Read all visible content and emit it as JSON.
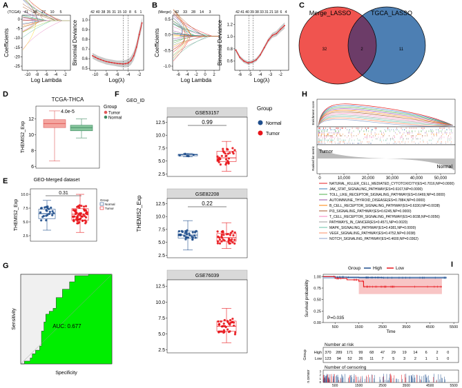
{
  "panel_labels": {
    "a": "A",
    "b": "B",
    "c": "C",
    "d": "D",
    "e": "E",
    "f": "F",
    "g": "G",
    "h": "H",
    "i": "I"
  },
  "chart_data": [
    {
      "id": "A-coef",
      "type": "line",
      "top_prefix": "(TCGA)",
      "top_ticks": [
        "41",
        "38",
        "27",
        "10",
        "5"
      ],
      "x_ticks": [
        "-10",
        "-8",
        "-6",
        "-4",
        "-2"
      ],
      "y_ticks": [
        "0",
        "-5",
        "-10",
        "-15",
        "-20",
        "-25"
      ],
      "xlabel": "Log Lambda",
      "ylabel": "Coefficients",
      "xlim": [
        -10.5,
        -1.5
      ],
      "ylim": [
        -27,
        3
      ]
    },
    {
      "id": "A-deviance",
      "type": "line",
      "top_ticks": [
        "42",
        "40",
        "38",
        "35",
        "31",
        "15",
        "10",
        "8",
        "6",
        "1"
      ],
      "x_ticks": [
        "-10",
        "-8",
        "-6",
        "-4",
        "-2"
      ],
      "y_ticks": [
        "1.0",
        "0.9",
        "0.8",
        "0.7",
        "0.6",
        "0.5"
      ],
      "xlabel": "Log(λ)",
      "ylabel": "Binomial Deviance",
      "xlim": [
        -11,
        -1.2
      ],
      "ylim": [
        0.48,
        1.05
      ],
      "vlines": [
        -4.9,
        -4.0
      ],
      "x": [
        -10.5,
        -10,
        -9.5,
        -9,
        -8.5,
        -8,
        -7.5,
        -7,
        -6.5,
        -6,
        -5.5,
        -5,
        -4.5,
        -4,
        -3.5,
        -3,
        -2.5,
        -2,
        -1.5
      ],
      "y": [
        0.63,
        0.615,
        0.6,
        0.59,
        0.58,
        0.57,
        0.565,
        0.56,
        0.555,
        0.55,
        0.548,
        0.546,
        0.548,
        0.556,
        0.58,
        0.63,
        0.72,
        0.85,
        0.97
      ]
    },
    {
      "id": "B-coef",
      "type": "line",
      "top_prefix": "(Merge)",
      "top_ticks": [
        "42",
        "33",
        "28",
        "14",
        "3"
      ],
      "x_ticks": [
        "-6",
        "-4",
        "-2",
        "0",
        "2"
      ],
      "y_ticks": [
        "0.5",
        "0.0",
        "-0.5",
        "-1.0"
      ],
      "xlabel": "Log Lambda",
      "ylabel": "Coefficients",
      "xlim": [
        -7,
        2.5
      ],
      "ylim": [
        -1.3,
        0.8
      ]
    },
    {
      "id": "B-deviance",
      "type": "line",
      "top_ticks": [
        "42",
        "41",
        "40",
        "39",
        "38",
        "33",
        "31",
        "21",
        "18",
        "6",
        "4"
      ],
      "x_ticks": [
        "-6",
        "-5",
        "-4",
        "-3",
        "-2"
      ],
      "y_ticks": [
        "1.2",
        "1.0",
        "0.8",
        "0.6"
      ],
      "xlabel": "Log(λ)",
      "ylabel": "Binomial Deviance",
      "xlim": [
        -6.5,
        -1.2
      ],
      "ylim": [
        0.45,
        1.35
      ],
      "vlines": [
        -5.1,
        -4.7
      ],
      "x": [
        -6.4,
        -6,
        -5.6,
        -5.2,
        -4.8,
        -4.4,
        -4,
        -3.6,
        -3.2,
        -2.8,
        -2.4,
        -2,
        -1.6
      ],
      "y": [
        0.78,
        0.66,
        0.6,
        0.57,
        0.585,
        0.62,
        0.7,
        0.82,
        0.94,
        1.02,
        1.05,
        1.12,
        1.18
      ]
    },
    {
      "id": "C-venn",
      "type": "venn",
      "sets": [
        "Merge_LASSO",
        "TGCA_LASSO"
      ],
      "values": {
        "only_left": "32",
        "both": "2",
        "only_right": "11"
      }
    },
    {
      "id": "D-box",
      "type": "box",
      "title": "TCGA-THCA",
      "pvalue": "4.0e-5",
      "ylabel": "THEMIS2_Exp",
      "y_ticks": [
        "12",
        "10",
        "8",
        "6"
      ],
      "ylim": [
        5.8,
        13.6
      ],
      "legend_title": "Group",
      "groups": [
        "Tumor",
        "Normal"
      ],
      "series": [
        {
          "name": "Tumor",
          "min": 6.7,
          "q1": 10.9,
          "median": 11.4,
          "q3": 11.9,
          "max": 13.0
        },
        {
          "name": "Normal",
          "min": 9.6,
          "q1": 10.5,
          "median": 10.9,
          "q3": 11.2,
          "max": 12.0
        }
      ]
    },
    {
      "id": "E-box",
      "type": "box",
      "title": "GEO-Merged dataset",
      "pvalue": "0.31",
      "ylabel": "THEMIS2_Exp",
      "y_ticks": [
        "10.0",
        "7.5",
        "5.0",
        "2.5"
      ],
      "ylim": [
        1.5,
        11.0
      ],
      "legend_title": "Group",
      "groups": [
        "Normal",
        "Tumor"
      ],
      "series": [
        {
          "name": "Normal",
          "min": 3.5,
          "q1": 5.6,
          "median": 6.5,
          "q3": 7.3,
          "max": 8.9
        },
        {
          "name": "Tumor",
          "min": 3.1,
          "q1": 5.3,
          "median": 6.4,
          "q3": 7.4,
          "max": 10.0
        }
      ]
    },
    {
      "id": "F-box",
      "type": "box",
      "title": "GEO_ID",
      "ylabel": "THEMIS2_Exp",
      "y_ticks": [
        "12.5",
        "10.0",
        "7.5",
        "5.0",
        "2.5"
      ],
      "ylim": [
        2.0,
        13.5
      ],
      "legend_title": "Group",
      "groups": [
        "Normal",
        "Tumor"
      ],
      "facets": [
        {
          "name": "GSE53157",
          "pvalue": "0.99",
          "series": [
            {
              "name": "Normal",
              "min": 5.8,
              "q1": 6.0,
              "median": 6.2,
              "q3": 6.3,
              "max": 6.5
            },
            {
              "name": "Tumor",
              "min": 3.0,
              "q1": 4.9,
              "median": 5.6,
              "q3": 6.9,
              "max": 8.8
            }
          ]
        },
        {
          "name": "GSE82208",
          "pvalue": "0.22",
          "series": [
            {
              "name": "Normal",
              "min": 3.5,
              "q1": 5.8,
              "median": 6.4,
              "q3": 7.2,
              "max": 9.2
            },
            {
              "name": "Tumor",
              "min": 3.8,
              "q1": 5.2,
              "median": 5.9,
              "q3": 6.7,
              "max": 8.8
            }
          ]
        },
        {
          "name": "GSE76039",
          "series": [
            {
              "name": "Tumor",
              "min": 3.6,
              "q1": 5.4,
              "median": 6.2,
              "q3": 7.0,
              "max": 9.0
            }
          ]
        }
      ]
    },
    {
      "id": "G-roc",
      "type": "area",
      "annotation": "AUC: 0.677",
      "xlabel": "Specificity",
      "ylabel": "Sensitivity",
      "fill": "#00ee00"
    },
    {
      "id": "H-gsea",
      "type": "line",
      "ylabel_top": "Enrichment score",
      "ylabel_bottom": "Ranked list metric",
      "x_ticks": [
        "0",
        "10,000",
        "20,000",
        "30,000",
        "40,000",
        "50,000"
      ],
      "xlim": [
        0,
        57000
      ],
      "tumor_label": "Tumor",
      "normal_label": "Normal",
      "series": [
        {
          "name": "NATURAL_KILLER_CELL_MEDIATED_CYTOTOXICITY(ES=0.7016,NP=0.0000)",
          "color": "#e41a1c"
        },
        {
          "name": "JAK_STAT_SIGNALING_PATHWAY(ES=0.6167,NP=0.0000)",
          "color": "#377eb8"
        },
        {
          "name": "TOLL_LIKE_RECEPTOR_SIGNALING_PATHWAY(ES=0.6469,NP=0.0000)",
          "color": "#4daf4a"
        },
        {
          "name": "AUTOIMMUNE_THYROID_DISEASE(ES=0.7884,NP=0.0000)",
          "color": "#984ea3"
        },
        {
          "name": "B_CELL_RECEPTOR_SIGNALING_PATHWAY(ES=0.6330,NP=0.0038)",
          "color": "#ff7f00"
        },
        {
          "name": "PI3_SIGNALING_PATHWAY(ES=0.6245,NP=0.0000)",
          "color": "#a65628"
        },
        {
          "name": "T_CELL_RECEPTOR_SIGNALING_PATHWAY(ES=0.6038,NP=0.0056)",
          "color": "#f781bf"
        },
        {
          "name": "PATHWAYS_IN_CANCER(ES=0.4571,NP=0.0020)",
          "color": "#999999"
        },
        {
          "name": "MAPK_SIGNALING_PATHWAY(ES=0.4381,NP=0.0000)",
          "color": "#66c2a5"
        },
        {
          "name": "VEGF_SIGNALING_PATHWAY(ES=0.4752,NP=0.0038)",
          "color": "#fc8d62"
        },
        {
          "name": "NOTCH_SIGNALING_PATHWAY(ES=0.4600,NP=0.0362)",
          "color": "#8da0cb"
        }
      ]
    },
    {
      "id": "I-km",
      "type": "line",
      "legend_title": "Group",
      "groups": [
        "High",
        "Low"
      ],
      "ylabel": "Survival probability",
      "xlabel": "Time",
      "pvalue": "P=0.035",
      "y_ticks": [
        "1.00",
        "0.75",
        "0.50",
        "0.25",
        "0.00"
      ],
      "x_ticks": [
        "500",
        "1500",
        "2500",
        "3500",
        "4500",
        "5500"
      ],
      "xlim": [
        0,
        5700
      ],
      "ylim": [
        0,
        1.05
      ],
      "series": [
        {
          "name": "High",
          "x": [
            0,
            500,
            1000,
            1500,
            2500,
            3500,
            4500,
            5200
          ],
          "y": [
            1.0,
            0.99,
            0.985,
            0.98,
            0.975,
            0.975,
            0.975,
            0.975
          ]
        },
        {
          "name": "Low",
          "x": [
            0,
            500,
            1000,
            1500,
            1700,
            2500,
            3500,
            4500,
            5000
          ],
          "y": [
            1.0,
            0.96,
            0.93,
            0.9,
            0.78,
            0.78,
            0.78,
            0.78,
            0.78
          ]
        }
      ],
      "risk_title": "Number at risk",
      "risk_ylabel": "Group",
      "risk_rows": [
        {
          "label": "High",
          "values": [
            "370",
            "289",
            "171",
            "99",
            "68",
            "47",
            "29",
            "19",
            "14",
            "6",
            "2",
            "0"
          ]
        },
        {
          "label": "Low",
          "values": [
            "123",
            "94",
            "52",
            "26",
            "11",
            "7",
            "5",
            "3",
            "2",
            "1",
            "1",
            "0"
          ]
        }
      ],
      "censor_title": "Number of censoring",
      "censor_ylabel": "n.censor",
      "censor_y_ticks": [
        "3",
        "2",
        "1",
        "0"
      ],
      "censor_x_ticks": [
        "500",
        "1500",
        "2500",
        "3500",
        "4500",
        "5500"
      ],
      "censor_xlabel": "Time"
    }
  ],
  "colors": {
    "tumor": "#e8141a",
    "normal": "#1f4e8c",
    "venn_left": "#f0544f",
    "venn_right": "#4d7fb3",
    "venn_overlap": "#6c3c68",
    "roc_fill": "#00ee00"
  }
}
